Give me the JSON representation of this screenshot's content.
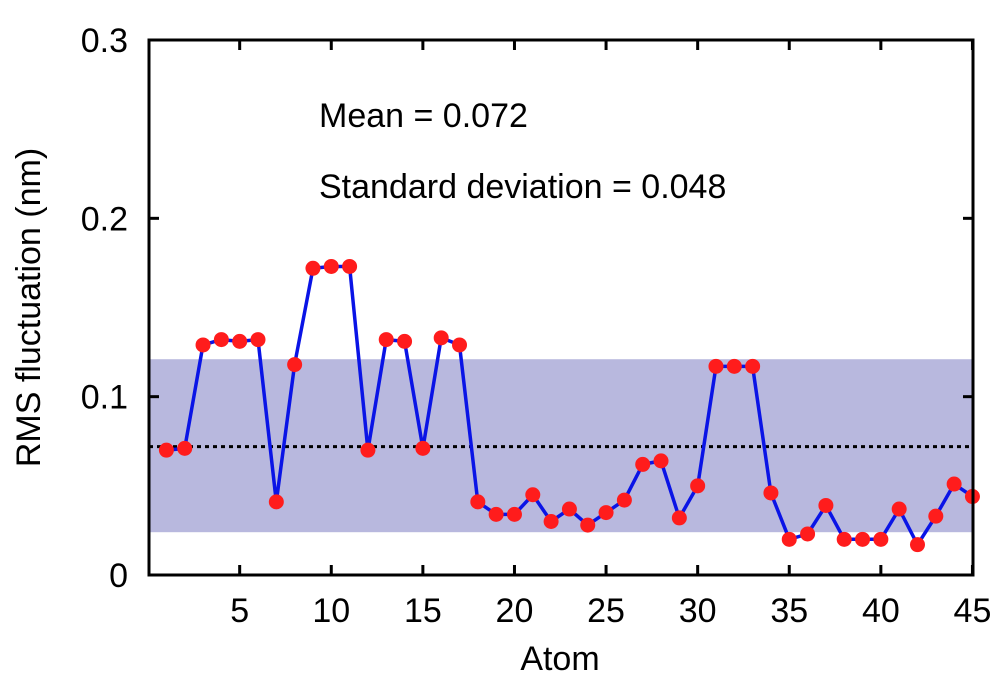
{
  "chart_data": {
    "type": "line",
    "xlabel": "Atom",
    "ylabel": "RMS fluctuation (nm)",
    "xlim": [
      0.05,
      45.03
    ],
    "ylim": [
      0,
      0.3
    ],
    "xticks": [
      5,
      10,
      15,
      20,
      25,
      30,
      35,
      40,
      45
    ],
    "yticks": [
      0,
      0.1,
      0.2,
      0.3
    ],
    "ytick_labels": [
      "0",
      "0.1",
      "0.2",
      "0.3"
    ],
    "annotations": [
      "Mean = 0.072",
      "Standard deviation = 0.048"
    ],
    "mean": 0.072,
    "std_band": [
      0.024,
      0.121
    ],
    "grid": false,
    "colors": {
      "line": "#0a14e6",
      "marker": "#ff1c1c",
      "band": "#b8b8de",
      "mean_line": "#000000"
    },
    "series": [
      {
        "x": [
          1,
          2,
          3,
          4,
          5,
          6,
          7,
          8,
          9,
          10,
          11,
          12,
          13,
          14,
          15,
          16,
          17,
          18,
          19,
          20,
          21,
          22,
          23,
          24,
          25,
          26,
          27,
          28,
          29,
          30,
          31,
          32,
          33,
          34,
          35,
          36,
          37,
          38,
          39,
          40,
          41,
          42,
          43,
          44,
          45
        ],
        "values": [
          0.07,
          0.071,
          0.129,
          0.132,
          0.131,
          0.132,
          0.041,
          0.118,
          0.172,
          0.173,
          0.173,
          0.07,
          0.132,
          0.131,
          0.071,
          0.133,
          0.129,
          0.041,
          0.034,
          0.034,
          0.045,
          0.03,
          0.037,
          0.028,
          0.035,
          0.042,
          0.062,
          0.064,
          0.032,
          0.05,
          0.117,
          0.117,
          0.117,
          0.046,
          0.02,
          0.023,
          0.039,
          0.02,
          0.02,
          0.02,
          0.037,
          0.017,
          0.033,
          0.051,
          0.044
        ]
      }
    ]
  }
}
